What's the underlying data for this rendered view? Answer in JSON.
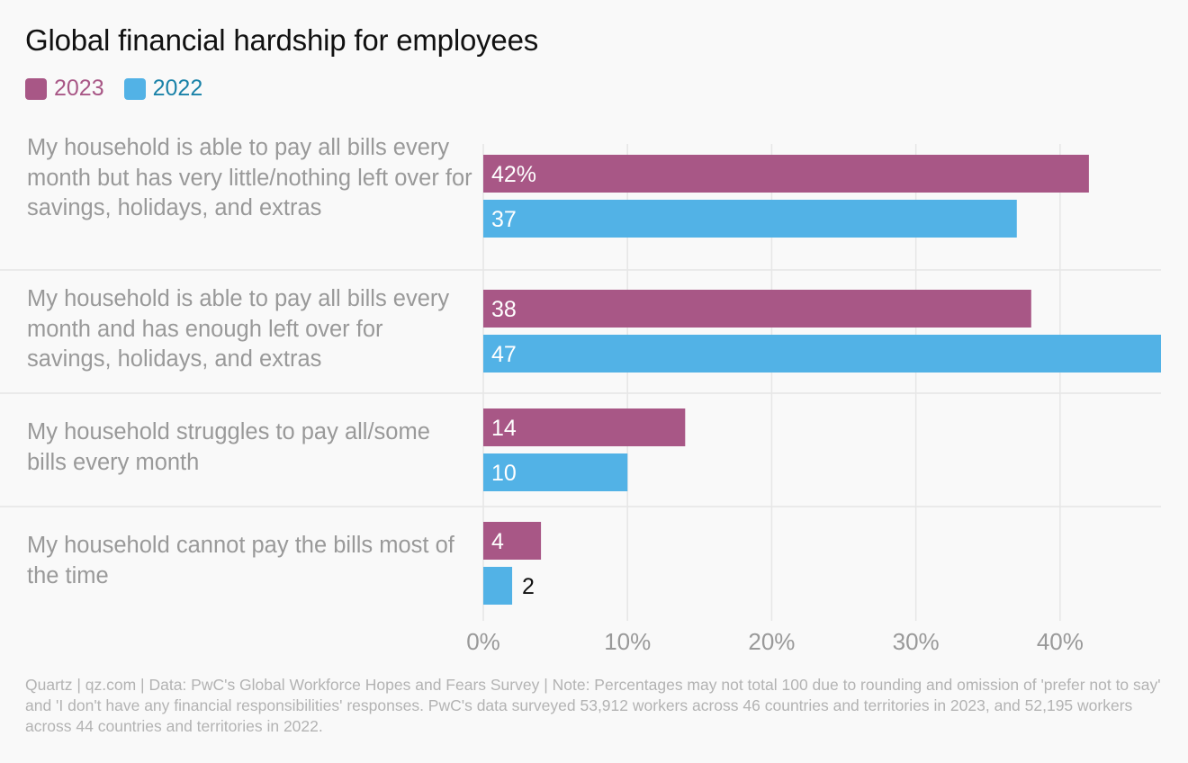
{
  "chart_data": {
    "type": "bar",
    "orientation": "horizontal",
    "title": "Global financial hardship for employees",
    "categories": [
      "My household is able to pay all bills every month but has very little/nothing left over for savings, holidays, and extras",
      "My household is able to pay all bills every month and has enough left over for savings, holidays, and extras",
      "My household struggles to pay all/some bills every month",
      "My household cannot pay the bills most of the time"
    ],
    "series": [
      {
        "name": "2023",
        "color": "#a85786",
        "values": [
          42,
          38,
          14,
          4
        ],
        "labels": [
          "42%",
          "38",
          "14",
          "4"
        ]
      },
      {
        "name": "2022",
        "color": "#52b2e6",
        "values": [
          37,
          47,
          10,
          2
        ],
        "labels": [
          "37",
          "47",
          "10",
          "2"
        ]
      }
    ],
    "xticks": [
      "0%",
      "10%",
      "20%",
      "30%",
      "40%"
    ],
    "xlim": [
      0,
      47
    ],
    "grid": true,
    "legend_position": "top-left"
  },
  "footer": "Quartz | qz.com | Data: PwC's Global Workforce Hopes and Fears Survey | Note: Percentages may not total 100 due to rounding and omission of 'prefer not to say' and 'I don't have any financial responsibilities' responses. PwC's data surveyed 53,912 workers across 46 countries and territories in 2023, and 52,195 workers across 44 countries and territories in 2022."
}
